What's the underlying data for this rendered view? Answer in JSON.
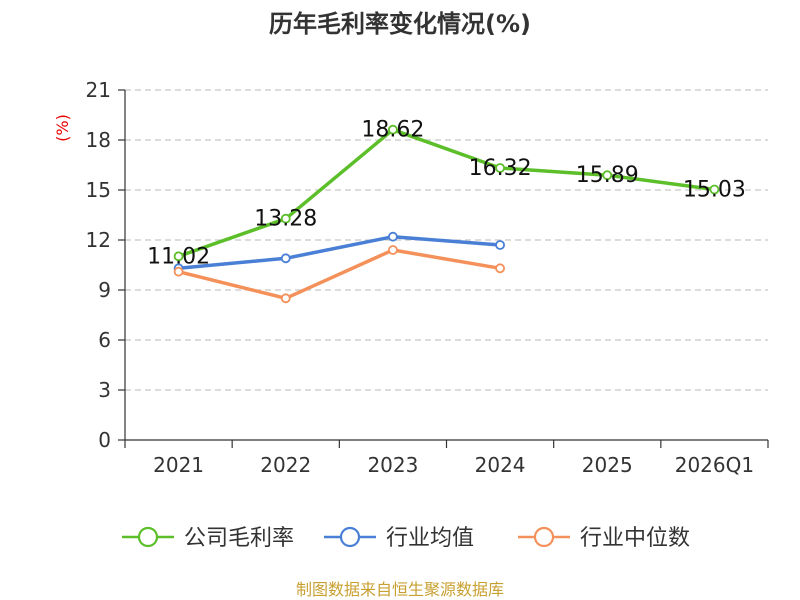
{
  "chart_data": {
    "type": "line",
    "title": "历年毛利率变化情况(%)",
    "ylabel": "(%)",
    "xlabel": "",
    "categories": [
      "2021",
      "2022",
      "2023",
      "2024",
      "2025",
      "2026Q1"
    ],
    "yticks": [
      0,
      3,
      6,
      9,
      12,
      15,
      18,
      21
    ],
    "ylim": [
      0,
      21
    ],
    "grid": true,
    "legend_position": "bottom",
    "series": [
      {
        "name": "公司毛利率",
        "color": "#5cbf2a",
        "values": [
          11.02,
          13.28,
          18.62,
          16.32,
          15.89,
          15.03
        ],
        "labels": [
          "11.02",
          "13.28",
          "18.62",
          "16.32",
          "15.89",
          "15.03"
        ]
      },
      {
        "name": "行业均值",
        "color": "#4a7fd6",
        "values": [
          10.3,
          10.9,
          12.2,
          11.7,
          null,
          null
        ]
      },
      {
        "name": "行业中位数",
        "color": "#f4915a",
        "values": [
          10.1,
          8.5,
          11.4,
          10.3,
          null,
          null
        ]
      }
    ],
    "source": "制图数据来自恒生聚源数据库"
  }
}
